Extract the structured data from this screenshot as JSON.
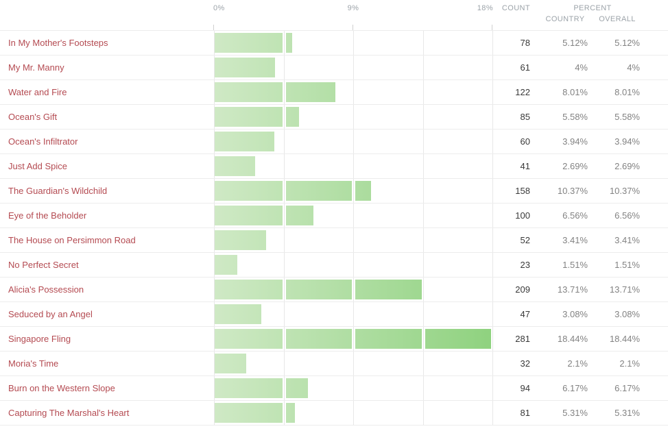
{
  "header": {
    "axis_ticks": [
      "0%",
      "9%",
      "18%"
    ],
    "count_label": "COUNT",
    "percent_label": "PERCENT",
    "country_label": "COUNTRY",
    "overall_label": "OVERALL"
  },
  "colors": {
    "bar_gradient_start": "#cfe9c5",
    "bar_gradient_end": "#8fd27f",
    "title_text": "#b44a51",
    "header_text": "#9ca3a9",
    "count_text": "#383838",
    "percent_text": "#828282",
    "grid_line": "#e7e7e7"
  },
  "chart_data": {
    "type": "bar",
    "orientation": "horizontal",
    "title": "",
    "xlabel": "",
    "ylabel": "",
    "xlim": [
      0,
      18
    ],
    "axis_tick_labels": [
      "0%",
      "9%",
      "18%"
    ],
    "grid": true,
    "categories": [
      "In My Mother's Footsteps",
      "My Mr. Manny",
      "Water and Fire",
      "Ocean's Gift",
      "Ocean's Infiltrator",
      "Just Add Spice",
      "The Guardian's Wildchild",
      "Eye of the Beholder",
      "The House on Persimmon Road",
      "No Perfect Secret",
      "Alicia's Possession",
      "Seduced by an Angel",
      "Singapore Fling",
      "Moria's Time",
      "Burn on the Western Slope",
      "Capturing The Marshal's Heart"
    ],
    "series": [
      {
        "name": "Count",
        "values": [
          78,
          61,
          122,
          85,
          60,
          41,
          158,
          100,
          52,
          23,
          209,
          47,
          281,
          32,
          94,
          81
        ]
      },
      {
        "name": "Country %",
        "values": [
          5.12,
          4,
          8.01,
          5.58,
          3.94,
          2.69,
          10.37,
          6.56,
          3.41,
          1.51,
          13.71,
          3.08,
          18.44,
          2.1,
          6.17,
          5.31
        ]
      },
      {
        "name": "Overall %",
        "values": [
          5.12,
          4,
          8.01,
          5.58,
          3.94,
          2.69,
          10.37,
          6.56,
          3.41,
          1.51,
          13.71,
          3.08,
          18.44,
          2.1,
          6.17,
          5.31
        ]
      }
    ]
  },
  "rows": [
    {
      "title": "In My Mother's Footsteps",
      "count": "78",
      "country": "5.12%",
      "overall": "5.12%",
      "percent_value": 5.12
    },
    {
      "title": "My Mr. Manny",
      "count": "61",
      "country": "4%",
      "overall": "4%",
      "percent_value": 4
    },
    {
      "title": "Water and Fire",
      "count": "122",
      "country": "8.01%",
      "overall": "8.01%",
      "percent_value": 8.01
    },
    {
      "title": "Ocean's Gift",
      "count": "85",
      "country": "5.58%",
      "overall": "5.58%",
      "percent_value": 5.58
    },
    {
      "title": "Ocean's Infiltrator",
      "count": "60",
      "country": "3.94%",
      "overall": "3.94%",
      "percent_value": 3.94
    },
    {
      "title": "Just Add Spice",
      "count": "41",
      "country": "2.69%",
      "overall": "2.69%",
      "percent_value": 2.69
    },
    {
      "title": "The Guardian's Wildchild",
      "count": "158",
      "country": "10.37%",
      "overall": "10.37%",
      "percent_value": 10.37
    },
    {
      "title": "Eye of the Beholder",
      "count": "100",
      "country": "6.56%",
      "overall": "6.56%",
      "percent_value": 6.56
    },
    {
      "title": "The House on Persimmon Road",
      "count": "52",
      "country": "3.41%",
      "overall": "3.41%",
      "percent_value": 3.41
    },
    {
      "title": "No Perfect Secret",
      "count": "23",
      "country": "1.51%",
      "overall": "1.51%",
      "percent_value": 1.51
    },
    {
      "title": "Alicia's Possession",
      "count": "209",
      "country": "13.71%",
      "overall": "13.71%",
      "percent_value": 13.71
    },
    {
      "title": "Seduced by an Angel",
      "count": "47",
      "country": "3.08%",
      "overall": "3.08%",
      "percent_value": 3.08
    },
    {
      "title": "Singapore Fling",
      "count": "281",
      "country": "18.44%",
      "overall": "18.44%",
      "percent_value": 18.44
    },
    {
      "title": "Moria's Time",
      "count": "32",
      "country": "2.1%",
      "overall": "2.1%",
      "percent_value": 2.1
    },
    {
      "title": "Burn on the Western Slope",
      "count": "94",
      "country": "6.17%",
      "overall": "6.17%",
      "percent_value": 6.17
    },
    {
      "title": "Capturing The Marshal's Heart",
      "count": "81",
      "country": "5.31%",
      "overall": "5.31%",
      "percent_value": 5.31
    }
  ]
}
